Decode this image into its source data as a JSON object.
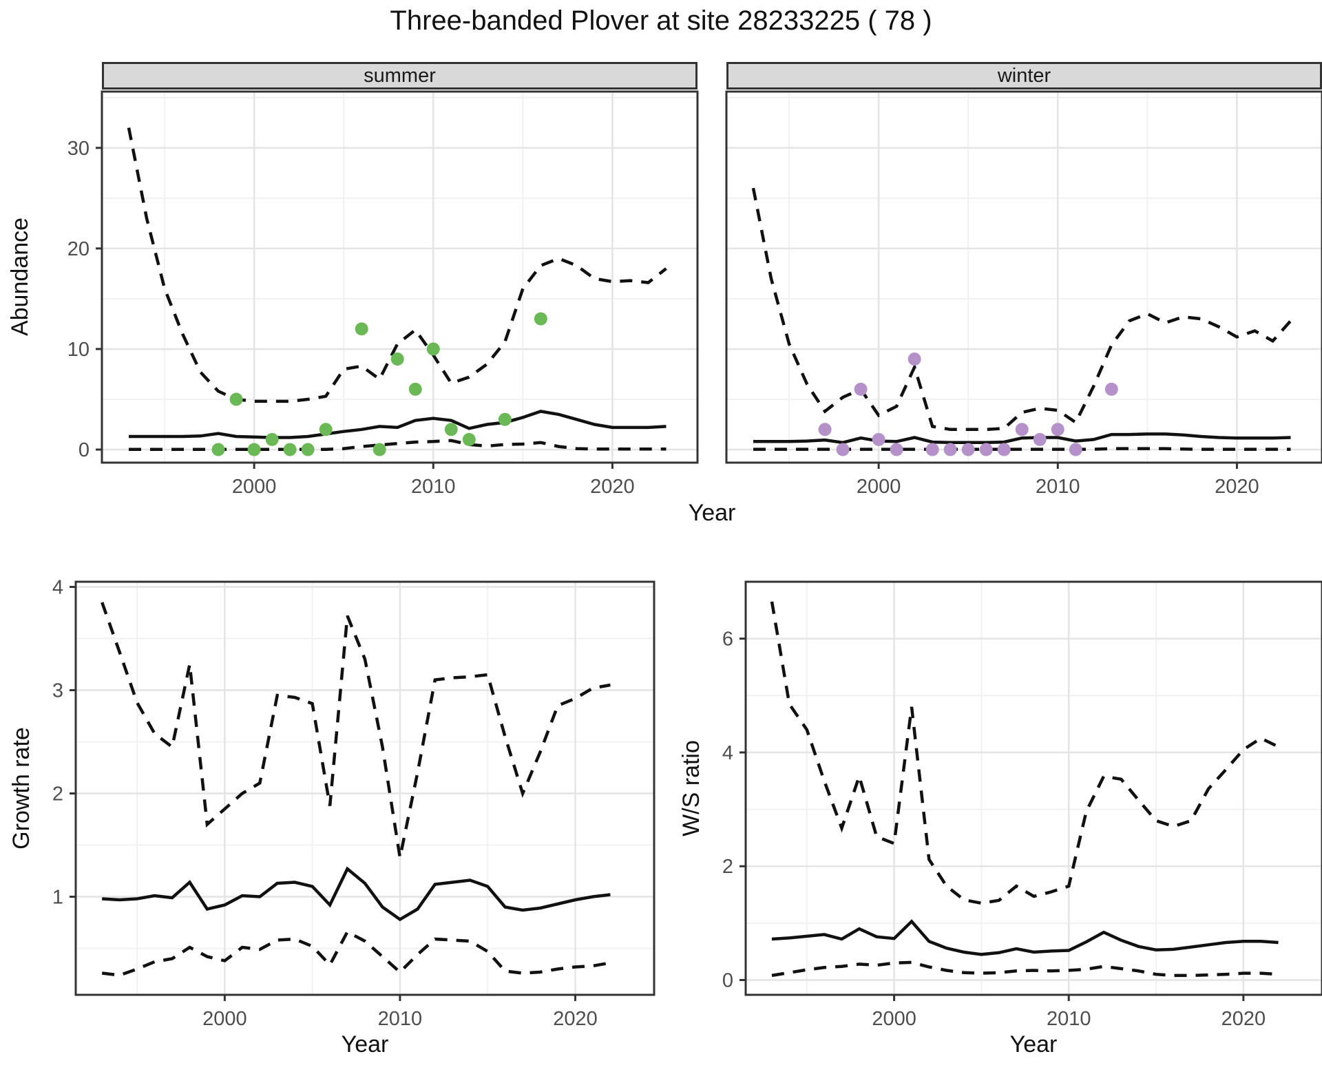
{
  "title": "Three-banded Plover at site 28233225 ( 78 )",
  "axis_labels": {
    "abundance": "Abundance",
    "year": "Year",
    "growth": "Growth rate",
    "ws": "W/S ratio"
  },
  "facets": {
    "summer": "summer",
    "winter": "winter"
  },
  "colors": {
    "summer_points": "#6bb956",
    "winter_points": "#b491c8",
    "line": "#111111",
    "grid_major": "#e4e4e4",
    "grid_minor": "#f1f1f1",
    "panel_border": "#333333",
    "tick_label": "#4d4d4d",
    "strip_fill": "#d9d9d9"
  },
  "chart_data": [
    {
      "target": "svg-summer",
      "type": "line",
      "facet": "summer",
      "title": "Abundance - summer facet",
      "xlim": [
        1991.5,
        2024.75
      ],
      "ylim": [
        -1.3,
        35.6
      ],
      "x_ticks": [
        2000,
        2010,
        2020
      ],
      "x_minor": [
        1995,
        2005,
        2015
      ],
      "y_ticks": [
        0,
        10,
        20,
        30
      ],
      "y_minor": [
        5,
        15,
        25,
        35
      ],
      "show_y_labels": true,
      "x": [
        1993,
        1994,
        1995,
        1996,
        1997,
        1998,
        1999,
        2000,
        2001,
        2002,
        2003,
        2004,
        2005,
        2006,
        2007,
        2008,
        2009,
        2010,
        2011,
        2012,
        2013,
        2014,
        2015,
        2016,
        2017,
        2018,
        2019,
        2020,
        2021,
        2022,
        2023
      ],
      "series": [
        {
          "name": "median",
          "style": "solid",
          "values": [
            1.3,
            1.3,
            1.3,
            1.3,
            1.35,
            1.6,
            1.3,
            1.25,
            1.2,
            1.2,
            1.3,
            1.55,
            1.8,
            2.0,
            2.3,
            2.2,
            2.9,
            3.1,
            2.9,
            2.1,
            2.5,
            2.7,
            3.2,
            3.8,
            3.5,
            3.0,
            2.5,
            2.2,
            2.2,
            2.2,
            2.3
          ]
        },
        {
          "name": "upper_ci",
          "style": "dashed",
          "values": [
            32,
            23,
            16,
            11.5,
            7.7,
            5.8,
            5.0,
            4.8,
            4.8,
            4.8,
            5.0,
            5.3,
            8.0,
            8.3,
            7.0,
            10.5,
            11.9,
            9.4,
            6.6,
            7.2,
            8.5,
            10.7,
            16.0,
            18.3,
            19.0,
            18.3,
            17.0,
            16.7,
            16.8,
            16.6,
            18.0
          ]
        },
        {
          "name": "lower_ci",
          "style": "dashed",
          "values": [
            0.02,
            0.02,
            0.02,
            0.02,
            0.02,
            0.02,
            0.02,
            0.02,
            0.02,
            0.02,
            0.02,
            0.02,
            0.1,
            0.3,
            0.45,
            0.6,
            0.75,
            0.8,
            0.9,
            0.5,
            0.35,
            0.5,
            0.55,
            0.7,
            0.3,
            0.1,
            0.05,
            0.05,
            0.05,
            0.05,
            0.05
          ]
        }
      ],
      "points": [
        [
          1998,
          0
        ],
        [
          1999,
          5
        ],
        [
          2000,
          0
        ],
        [
          2001,
          1
        ],
        [
          2002,
          0
        ],
        [
          2003,
          0
        ],
        [
          2004,
          2
        ],
        [
          2006,
          12
        ],
        [
          2007,
          0
        ],
        [
          2008,
          9
        ],
        [
          2009,
          6
        ],
        [
          2010,
          10
        ],
        [
          2011,
          2
        ],
        [
          2012,
          1
        ],
        [
          2014,
          3
        ],
        [
          2016,
          13
        ]
      ],
      "point_color": "#6bb956"
    },
    {
      "target": "svg-winter",
      "type": "line",
      "facet": "winter",
      "title": "Abundance - winter facet",
      "xlim": [
        1991.5,
        2024.75
      ],
      "ylim": [
        -1.3,
        35.6
      ],
      "x_ticks": [
        2000,
        2010,
        2020
      ],
      "x_minor": [
        1995,
        2005,
        2015
      ],
      "y_ticks": [
        0,
        10,
        20,
        30
      ],
      "y_minor": [
        5,
        15,
        25,
        35
      ],
      "show_y_labels": false,
      "x": [
        1993,
        1994,
        1995,
        1996,
        1997,
        1998,
        1999,
        2000,
        2001,
        2002,
        2003,
        2004,
        2005,
        2006,
        2007,
        2008,
        2009,
        2010,
        2011,
        2012,
        2013,
        2014,
        2015,
        2016,
        2017,
        2018,
        2019,
        2020,
        2021,
        2022,
        2023
      ],
      "series": [
        {
          "name": "median",
          "style": "solid",
          "values": [
            0.8,
            0.8,
            0.8,
            0.85,
            0.95,
            0.7,
            1.15,
            0.85,
            0.8,
            1.2,
            0.75,
            0.7,
            0.7,
            0.7,
            0.75,
            1.15,
            1.2,
            1.2,
            0.85,
            1.0,
            1.5,
            1.5,
            1.55,
            1.55,
            1.45,
            1.3,
            1.2,
            1.15,
            1.15,
            1.15,
            1.2
          ]
        },
        {
          "name": "upper_ci",
          "style": "dashed",
          "values": [
            26,
            17,
            10.5,
            6.5,
            3.8,
            5.2,
            6.0,
            3.4,
            4.3,
            8.2,
            2.3,
            2.0,
            2.0,
            2.0,
            2.1,
            3.7,
            4.1,
            3.9,
            2.7,
            6.3,
            10.4,
            12.8,
            13.5,
            12.6,
            13.2,
            13.0,
            12.2,
            11.2,
            11.8,
            10.8,
            12.8
          ]
        },
        {
          "name": "lower_ci",
          "style": "dashed",
          "values": [
            0.03,
            0.03,
            0.03,
            0.03,
            0.03,
            0.03,
            0.03,
            0.03,
            0.03,
            0.03,
            0.03,
            0.03,
            0.03,
            0.03,
            0.03,
            0.03,
            0.03,
            0.03,
            0.03,
            0.03,
            0.1,
            0.1,
            0.1,
            0.1,
            0.05,
            0.03,
            0.03,
            0.03,
            0.03,
            0.03,
            0.03
          ]
        }
      ],
      "points": [
        [
          1997,
          2
        ],
        [
          1998,
          0
        ],
        [
          1999,
          6
        ],
        [
          2000,
          1
        ],
        [
          2001,
          0
        ],
        [
          2002,
          9
        ],
        [
          2003,
          0
        ],
        [
          2004,
          0
        ],
        [
          2005,
          0
        ],
        [
          2006,
          0
        ],
        [
          2007,
          0
        ],
        [
          2008,
          2
        ],
        [
          2009,
          1
        ],
        [
          2010,
          2
        ],
        [
          2011,
          0
        ],
        [
          2013,
          6
        ]
      ],
      "point_color": "#b491c8"
    },
    {
      "target": "svg-growth",
      "type": "line",
      "title": "Growth rate",
      "xlim": [
        1991.5,
        2024.5
      ],
      "ylim": [
        0.05,
        4.05
      ],
      "x_ticks": [
        2000,
        2010,
        2020
      ],
      "x_minor": [
        1995,
        2005,
        2015
      ],
      "y_ticks": [
        1,
        2,
        3,
        4
      ],
      "y_minor": [
        0.5,
        1.5,
        2.5,
        3.5
      ],
      "show_y_labels": true,
      "x": [
        1993,
        1994,
        1995,
        1996,
        1997,
        1998,
        1999,
        2000,
        2001,
        2002,
        2003,
        2004,
        2005,
        2006,
        2007,
        2008,
        2009,
        2010,
        2011,
        2012,
        2013,
        2014,
        2015,
        2016,
        2017,
        2018,
        2019,
        2020,
        2021,
        2022
      ],
      "series": [
        {
          "name": "median",
          "style": "solid",
          "values": [
            0.98,
            0.97,
            0.98,
            1.01,
            0.99,
            1.14,
            0.88,
            0.92,
            1.01,
            1.0,
            1.13,
            1.14,
            1.1,
            0.92,
            1.27,
            1.13,
            0.9,
            0.78,
            0.88,
            1.12,
            1.14,
            1.16,
            1.1,
            0.9,
            0.87,
            0.89,
            0.93,
            0.97,
            1.0,
            1.02
          ]
        },
        {
          "name": "upper_ci",
          "style": "dashed",
          "values": [
            3.85,
            3.37,
            2.88,
            2.58,
            2.45,
            3.25,
            1.7,
            1.85,
            2.0,
            2.1,
            2.95,
            2.93,
            2.87,
            1.88,
            3.72,
            3.3,
            2.45,
            1.38,
            2.2,
            3.1,
            3.12,
            3.13,
            3.15,
            2.55,
            2.0,
            2.4,
            2.85,
            2.92,
            3.02,
            3.05
          ]
        },
        {
          "name": "lower_ci",
          "style": "dashed",
          "values": [
            0.26,
            0.24,
            0.3,
            0.37,
            0.4,
            0.51,
            0.42,
            0.38,
            0.51,
            0.49,
            0.58,
            0.59,
            0.52,
            0.34,
            0.66,
            0.57,
            0.42,
            0.27,
            0.44,
            0.59,
            0.58,
            0.57,
            0.47,
            0.28,
            0.26,
            0.27,
            0.3,
            0.32,
            0.33,
            0.36
          ]
        }
      ],
      "points": [],
      "point_color": "#6bb956"
    },
    {
      "target": "svg-ws",
      "type": "line",
      "title": "W/S ratio",
      "xlim": [
        1991.5,
        2024.5
      ],
      "ylim": [
        -0.26,
        7.0
      ],
      "x_ticks": [
        2000,
        2010,
        2020
      ],
      "x_minor": [
        1995,
        2005,
        2015
      ],
      "y_ticks": [
        0,
        2,
        4,
        6
      ],
      "y_minor": [
        1,
        3,
        5,
        7
      ],
      "show_y_labels": true,
      "x": [
        1993,
        1994,
        1995,
        1996,
        1997,
        1998,
        1999,
        2000,
        2001,
        2002,
        2003,
        2004,
        2005,
        2006,
        2007,
        2008,
        2009,
        2010,
        2011,
        2012,
        2013,
        2014,
        2015,
        2016,
        2017,
        2018,
        2019,
        2020,
        2021,
        2022
      ],
      "series": [
        {
          "name": "median",
          "style": "solid",
          "values": [
            0.72,
            0.74,
            0.77,
            0.8,
            0.72,
            0.9,
            0.76,
            0.73,
            1.03,
            0.68,
            0.56,
            0.49,
            0.45,
            0.48,
            0.55,
            0.49,
            0.51,
            0.52,
            0.67,
            0.84,
            0.7,
            0.59,
            0.53,
            0.54,
            0.58,
            0.62,
            0.66,
            0.68,
            0.68,
            0.66
          ]
        },
        {
          "name": "upper_ci",
          "style": "dashed",
          "values": [
            6.65,
            4.85,
            4.4,
            3.5,
            2.67,
            3.58,
            2.52,
            2.4,
            4.8,
            2.12,
            1.65,
            1.41,
            1.35,
            1.4,
            1.65,
            1.47,
            1.55,
            1.65,
            2.96,
            3.58,
            3.53,
            3.16,
            2.8,
            2.7,
            2.8,
            3.36,
            3.7,
            4.05,
            4.25,
            4.1
          ]
        },
        {
          "name": "lower_ci",
          "style": "dashed",
          "values": [
            0.08,
            0.13,
            0.18,
            0.22,
            0.24,
            0.28,
            0.26,
            0.3,
            0.31,
            0.23,
            0.17,
            0.13,
            0.12,
            0.13,
            0.16,
            0.17,
            0.16,
            0.17,
            0.19,
            0.24,
            0.2,
            0.16,
            0.1,
            0.08,
            0.08,
            0.09,
            0.1,
            0.12,
            0.12,
            0.1
          ]
        }
      ],
      "points": [],
      "point_color": "#b491c8"
    }
  ]
}
